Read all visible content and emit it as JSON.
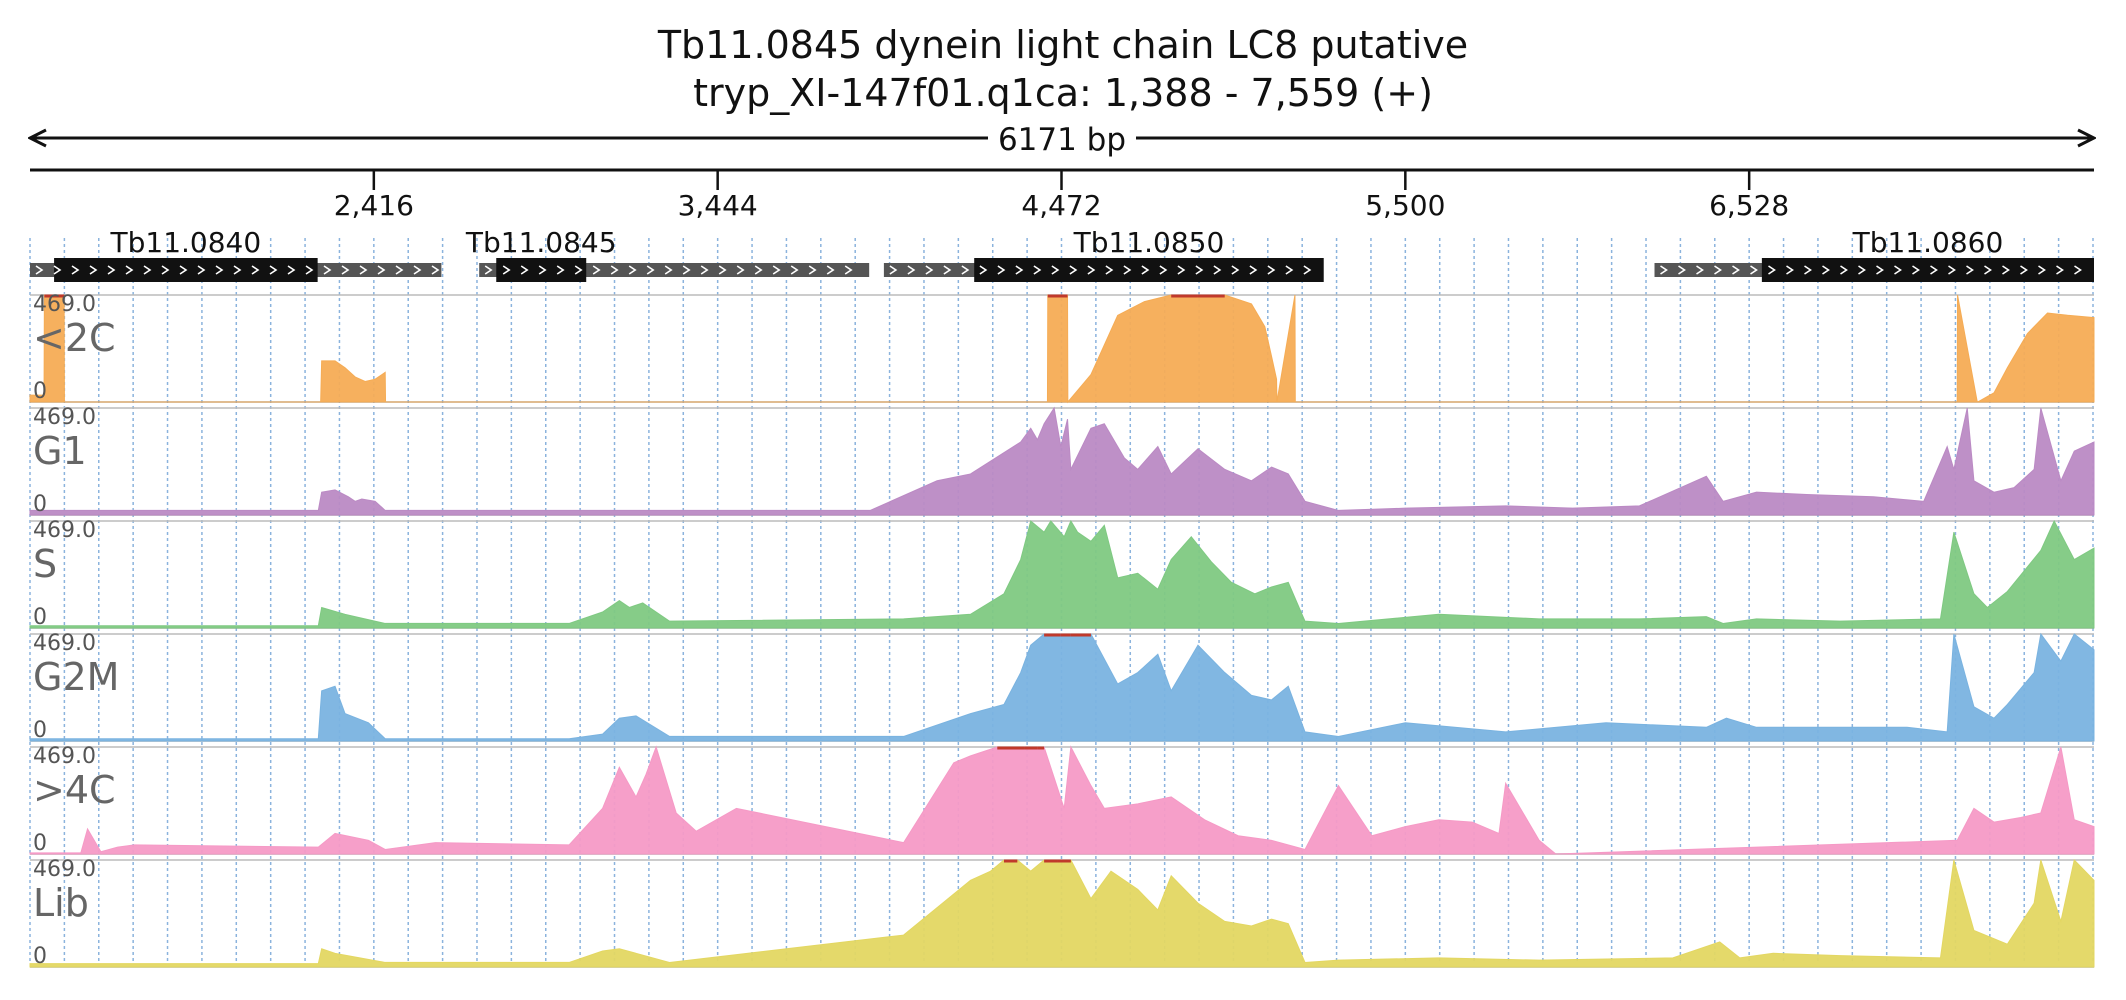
{
  "header": {
    "title": "Tb11.0845  dynein light chain LC8  putative",
    "location": "tryp_XI-147f01.q1ca: 1,388 - 7,559 (+)"
  },
  "ruler": {
    "span_label": "6171 bp",
    "ticks": [
      2416,
      3444,
      4472,
      5500,
      6528
    ],
    "tick_labels": [
      "2,416",
      "3,444",
      "4,472",
      "5,500",
      "6,528"
    ]
  },
  "chart_data": {
    "type": "area",
    "title": "Tb11.0845  dynein light chain LC8  putative",
    "xlim": [
      1388,
      7559
    ],
    "ylim": [
      0,
      469.0
    ],
    "ymax_label": "469.0",
    "ymin_label": "0",
    "grid": true,
    "genes": [
      {
        "name": "Tb11.0840",
        "utr": [
          1388,
          2618
        ],
        "cds": [
          1460,
          2248
        ]
      },
      {
        "name": "Tb11.0845",
        "utr": [
          2731,
          3897
        ],
        "cds": [
          2782,
          3051
        ]
      },
      {
        "name": "Tb11.0850",
        "utr": [
          3941,
          5242
        ],
        "cds": [
          4211,
          5256
        ]
      },
      {
        "name": "Tb11.0860",
        "utr": [
          6245,
          7559
        ],
        "cds": [
          6566,
          7559
        ]
      }
    ],
    "series": [
      {
        "name": "<2C",
        "color": "#f5ac55",
        "x": [
          1388,
          1430,
          1431,
          1490,
          1491,
          2257,
          2260,
          2300,
          2330,
          2360,
          2390,
          2420,
          2440,
          2450,
          2451,
          4430,
          4431,
          4490,
          4491,
          4560,
          4640,
          4720,
          4800,
          4880,
          4960,
          5040,
          5080,
          5100,
          5115,
          5116,
          5170,
          5171,
          7150,
          7151,
          7210,
          7211,
          7260,
          7300,
          7360,
          7420,
          7480,
          7559
        ],
        "values": [
          30,
          30,
          469,
          469,
          0,
          0,
          180,
          180,
          150,
          110,
          90,
          100,
          120,
          130,
          0,
          0,
          469,
          469,
          0,
          120,
          380,
          440,
          469,
          469,
          469,
          430,
          330,
          200,
          100,
          0,
          469,
          0,
          0,
          469,
          0,
          0,
          40,
          150,
          300,
          390,
          380,
          370
        ]
      },
      {
        "name": "G1",
        "color": "#bb8ac4",
        "x": [
          1388,
          2250,
          2260,
          2300,
          2340,
          2360,
          2380,
          2420,
          2450,
          3800,
          3900,
          4100,
          4200,
          4350,
          4380,
          4400,
          4420,
          4450,
          4470,
          4490,
          4500,
          4560,
          4600,
          4660,
          4700,
          4760,
          4800,
          4880,
          4960,
          5040,
          5100,
          5150,
          5200,
          5300,
          5500,
          5800,
          6000,
          6200,
          6400,
          6450,
          6500,
          6550,
          6700,
          6900,
          7050,
          7120,
          7140,
          7180,
          7200,
          7260,
          7320,
          7380,
          7400,
          7460,
          7500,
          7559
        ],
        "values": [
          20,
          20,
          100,
          110,
          80,
          60,
          70,
          60,
          20,
          20,
          20,
          150,
          180,
          320,
          380,
          330,
          400,
          469,
          300,
          420,
          200,
          380,
          400,
          250,
          200,
          300,
          180,
          290,
          200,
          150,
          210,
          180,
          60,
          20,
          30,
          40,
          30,
          40,
          170,
          60,
          80,
          100,
          90,
          80,
          60,
          300,
          200,
          469,
          150,
          100,
          120,
          200,
          469,
          150,
          280,
          320
        ]
      },
      {
        "name": "S",
        "color": "#7fc982",
        "x": [
          1388,
          2250,
          2260,
          2330,
          2450,
          3000,
          3100,
          3150,
          3180,
          3220,
          3300,
          4000,
          4200,
          4300,
          4350,
          4380,
          4420,
          4440,
          4480,
          4500,
          4520,
          4560,
          4600,
          4640,
          4700,
          4760,
          4800,
          4860,
          4920,
          4980,
          5050,
          5100,
          5150,
          5200,
          5300,
          5600,
          5900,
          6200,
          6400,
          6450,
          6550,
          6800,
          7100,
          7140,
          7200,
          7240,
          7300,
          7400,
          7440,
          7500,
          7559
        ],
        "values": [
          10,
          10,
          90,
          60,
          20,
          20,
          70,
          120,
          90,
          110,
          30,
          40,
          60,
          150,
          300,
          469,
          420,
          469,
          400,
          469,
          420,
          380,
          450,
          220,
          240,
          170,
          300,
          400,
          290,
          200,
          150,
          180,
          200,
          30,
          20,
          60,
          40,
          40,
          50,
          20,
          40,
          30,
          40,
          420,
          150,
          90,
          160,
          340,
          469,
          300,
          350
        ]
      },
      {
        "name": "G2M",
        "color": "#7ab3e0",
        "x": [
          1388,
          2250,
          2260,
          2300,
          2330,
          2400,
          2450,
          3000,
          3100,
          3150,
          3200,
          3300,
          4000,
          4200,
          4300,
          4350,
          4380,
          4420,
          4470,
          4500,
          4560,
          4640,
          4700,
          4760,
          4800,
          4880,
          4960,
          5040,
          5100,
          5150,
          5200,
          5300,
          5500,
          5800,
          6100,
          6400,
          6460,
          6550,
          6700,
          7000,
          7120,
          7140,
          7200,
          7260,
          7300,
          7380,
          7400,
          7460,
          7500,
          7559
        ],
        "values": [
          10,
          10,
          220,
          240,
          120,
          80,
          10,
          10,
          30,
          100,
          110,
          20,
          20,
          120,
          160,
          300,
          420,
          469,
          469,
          469,
          469,
          250,
          300,
          380,
          220,
          420,
          300,
          200,
          180,
          240,
          40,
          20,
          80,
          40,
          80,
          60,
          100,
          60,
          60,
          60,
          40,
          469,
          150,
          100,
          160,
          300,
          469,
          350,
          469,
          400
        ]
      },
      {
        "name": ">4C",
        "color": "#f59ac6",
        "x": [
          1388,
          1540,
          1560,
          1600,
          1650,
          1700,
          2250,
          2300,
          2400,
          2450,
          2600,
          3000,
          3100,
          3150,
          3200,
          3230,
          3260,
          3320,
          3380,
          3500,
          4000,
          4150,
          4200,
          4280,
          4360,
          4400,
          4420,
          4480,
          4500,
          4560,
          4600,
          4700,
          4800,
          4900,
          5000,
          5100,
          5200,
          5300,
          5400,
          5500,
          5600,
          5700,
          5780,
          5800,
          5900,
          5950,
          7150,
          7200,
          7260,
          7340,
          7400,
          7460,
          7500,
          7559
        ],
        "values": [
          5,
          5,
          110,
          10,
          30,
          40,
          30,
          90,
          60,
          20,
          50,
          40,
          200,
          380,
          250,
          350,
          469,
          180,
          100,
          200,
          50,
          400,
          430,
          469,
          469,
          469,
          469,
          200,
          469,
          300,
          200,
          220,
          250,
          150,
          80,
          60,
          20,
          300,
          80,
          120,
          150,
          140,
          90,
          310,
          60,
          0,
          60,
          200,
          140,
          160,
          180,
          469,
          150,
          120
        ]
      },
      {
        "name": "Lib",
        "color": "#e3d762",
        "x": [
          1388,
          2250,
          2260,
          2300,
          2450,
          3000,
          3100,
          3150,
          3200,
          3300,
          4000,
          4200,
          4260,
          4300,
          4340,
          4380,
          4420,
          4460,
          4500,
          4560,
          4620,
          4700,
          4760,
          4800,
          4880,
          4960,
          5040,
          5100,
          5150,
          5200,
          5300,
          5600,
          5900,
          6300,
          6440,
          6500,
          6600,
          6800,
          7100,
          7140,
          7200,
          7300,
          7380,
          7400,
          7460,
          7500,
          7559
        ],
        "values": [
          15,
          15,
          80,
          60,
          20,
          20,
          70,
          80,
          60,
          20,
          140,
          380,
          420,
          469,
          469,
          420,
          469,
          469,
          469,
          300,
          420,
          340,
          250,
          400,
          280,
          200,
          180,
          210,
          190,
          20,
          30,
          40,
          30,
          40,
          110,
          40,
          60,
          50,
          40,
          469,
          160,
          100,
          280,
          469,
          200,
          469,
          380
        ]
      }
    ]
  }
}
